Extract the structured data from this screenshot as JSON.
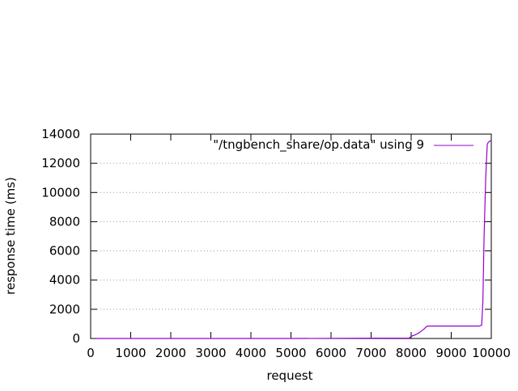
{
  "chart_data": {
    "type": "line",
    "title": "",
    "xlabel": "request",
    "ylabel": "response time (ms)",
    "xlim": [
      0,
      10000
    ],
    "ylim": [
      0,
      14000
    ],
    "x_ticks": [
      0,
      1000,
      2000,
      3000,
      4000,
      5000,
      6000,
      7000,
      8000,
      9000,
      10000
    ],
    "y_ticks": [
      0,
      2000,
      4000,
      6000,
      8000,
      10000,
      12000,
      14000
    ],
    "grid": "horizontal dotted",
    "legend_position": "top-right",
    "series": [
      {
        "name": "\"/tngbench_share/op.data\" using 9",
        "color": "#9400d3",
        "x": [
          150,
          1000,
          2000,
          3000,
          4000,
          5000,
          6000,
          7000,
          7950,
          8000,
          8100,
          8200,
          8300,
          8400,
          8500,
          9000,
          9500,
          9700,
          9760,
          9790,
          9820,
          9860,
          9900,
          9920,
          9950,
          10000
        ],
        "y": [
          0,
          0,
          0,
          0,
          0,
          0,
          10,
          20,
          30,
          150,
          250,
          400,
          600,
          850,
          850,
          850,
          850,
          850,
          900,
          2500,
          7000,
          11000,
          13300,
          13400,
          13500,
          13550
        ]
      }
    ]
  }
}
